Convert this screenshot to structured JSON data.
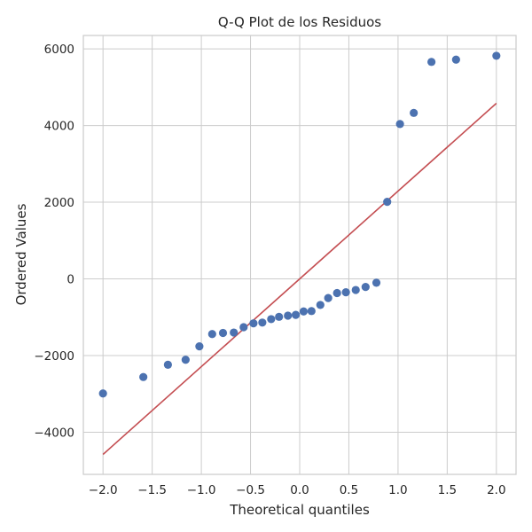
{
  "chart_data": {
    "type": "scatter",
    "title": "Q-Q Plot de los Residuos",
    "xlabel": "Theoretical quantiles",
    "ylabel": "Ordered Values",
    "xlim": [
      -2.2,
      2.2
    ],
    "ylim": [
      -5100,
      6350
    ],
    "xticks": [
      -2.0,
      -1.5,
      -1.0,
      -0.5,
      0.0,
      0.5,
      1.0,
      1.5,
      2.0
    ],
    "xtick_labels": [
      "−2.0",
      "−1.5",
      "−1.0",
      "−0.5",
      "0.0",
      "0.5",
      "1.0",
      "1.5",
      "2.0"
    ],
    "yticks": [
      -4000,
      -2000,
      0,
      2000,
      4000,
      6000
    ],
    "ytick_labels": [
      "−4000",
      "−2000",
      "0",
      "2000",
      "4000",
      "6000"
    ],
    "grid": true,
    "colors": {
      "points": "#4c72b0",
      "line": "#c44e52",
      "grid": "#cccccc",
      "spine": "#cccccc"
    },
    "points": {
      "x": [
        -2.0,
        -1.59,
        -1.34,
        -1.16,
        -1.02,
        -0.89,
        -0.78,
        -0.67,
        -0.57,
        -0.47,
        -0.38,
        -0.29,
        -0.21,
        -0.12,
        -0.04,
        0.04,
        0.12,
        0.21,
        0.29,
        0.38,
        0.47,
        0.57,
        0.67,
        0.78,
        0.89,
        1.02,
        1.16,
        1.34,
        1.59,
        2.0
      ],
      "y": [
        -2990,
        -2560,
        -2240,
        -2110,
        -1760,
        -1440,
        -1410,
        -1400,
        -1260,
        -1160,
        -1140,
        -1050,
        -990,
        -960,
        -940,
        -850,
        -840,
        -680,
        -500,
        -370,
        -350,
        -290,
        -210,
        -100,
        2010,
        4040,
        4330,
        5660,
        5720,
        5820
      ]
    },
    "line": {
      "x": [
        -2.0,
        2.0
      ],
      "y": [
        -4580,
        4580
      ]
    }
  }
}
